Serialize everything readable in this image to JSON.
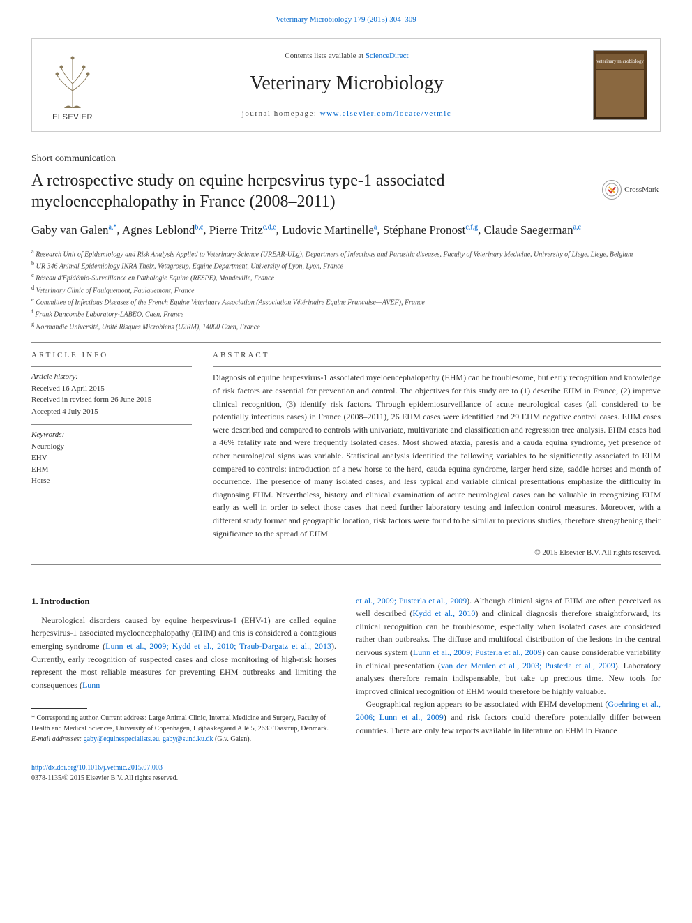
{
  "journal_ref": "Veterinary Microbiology 179 (2015) 304–309",
  "header": {
    "contents_text": "Contents lists available at ",
    "contents_link": "ScienceDirect",
    "journal_name": "Veterinary Microbiology",
    "homepage_label": "journal homepage: ",
    "homepage_url": "www.elsevier.com/locate/vetmic",
    "publisher": "ELSEVIER",
    "cover_text": "veterinary microbiology"
  },
  "crossmark": "CrossMark",
  "article": {
    "type": "Short communication",
    "title": "A retrospective study on equine herpesvirus type-1 associated myeloencephalopathy in France (2008–2011)",
    "authors_html": "Gaby van Galen<sup>a,*</sup>, Agnes Leblond<sup>b,c</sup>, Pierre Tritz<sup>c,d,e</sup>, Ludovic Martinelle<sup>a</sup>, Stéphane Pronost<sup>c,f,g</sup>, Claude Saegerman<sup>a,c</sup>"
  },
  "affiliations": [
    {
      "sup": "a",
      "text": "Research Unit of Epidemiology and Risk Analysis Applied to Veterinary Science (UREAR-ULg), Department of Infectious and Parasitic diseases, Faculty of Veterinary Medicine, University of Liege, Liege, Belgium"
    },
    {
      "sup": "b",
      "text": "UR 346 Animal Epidemiology INRA Theix, Vetagrosup, Equine Department, University of Lyon, Lyon, France"
    },
    {
      "sup": "c",
      "text": "Réseau d'Epidémio-Surveillance en Pathologie Equine (RESPE), Mondeville, France"
    },
    {
      "sup": "d",
      "text": "Veterinary Clinic of Faulquemont, Faulquemont, France"
    },
    {
      "sup": "e",
      "text": "Committee of Infectious Diseases of the French Equine Veterinary Association (Association Vétérinaire Equine Francaise—AVEF), France"
    },
    {
      "sup": "f",
      "text": "Frank Duncombe Laboratory-LABEO, Caen, France"
    },
    {
      "sup": "g",
      "text": "Normandie Université, Unité Risques Microbiens (U2RM), 14000 Caen, France"
    }
  ],
  "info": {
    "head": "ARTICLE INFO",
    "history_label": "Article history:",
    "history": [
      "Received 16 April 2015",
      "Received in revised form 26 June 2015",
      "Accepted 4 July 2015"
    ],
    "keywords_label": "Keywords:",
    "keywords": [
      "Neurology",
      "EHV",
      "EHM",
      "Horse"
    ]
  },
  "abstract": {
    "head": "ABSTRACT",
    "text": "Diagnosis of equine herpesvirus-1 associated myeloencephalopathy (EHM) can be troublesome, but early recognition and knowledge of risk factors are essential for prevention and control. The objectives for this study are to (1) describe EHM in France, (2) improve clinical recognition, (3) identify risk factors. Through epidemiosurveillance of acute neurological cases (all considered to be potentially infectious cases) in France (2008–2011), 26 EHM cases were identified and 29 EHM negative control cases. EHM cases were described and compared to controls with univariate, multivariate and classification and regression tree analysis. EHM cases had a 46% fatality rate and were frequently isolated cases. Most showed ataxia, paresis and a cauda equina syndrome, yet presence of other neurological signs was variable. Statistical analysis identified the following variables to be significantly associated to EHM compared to controls: introduction of a new horse to the herd, cauda equina syndrome, larger herd size, saddle horses and month of occurrence. The presence of many isolated cases, and less typical and variable clinical presentations emphasize the difficulty in diagnosing EHM. Nevertheless, history and clinical examination of acute neurological cases can be valuable in recognizing EHM early as well in order to select those cases that need further laboratory testing and infection control measures. Moreover, with a different study format and geographic location, risk factors were found to be similar to previous studies, therefore strengthening their significance to the spread of EHM.",
    "copyright": "© 2015 Elsevier B.V. All rights reserved."
  },
  "body": {
    "heading": "1. Introduction",
    "col1_p1_pre": "Neurological disorders caused by equine herpesvirus-1 (EHV-1) are called equine herpesvirus-1 associated myeloencephalopathy (EHM) and this is considered a contagious emerging syndrome (",
    "col1_p1_cite": "Lunn et al., 2009; Kydd et al., 2010; Traub-Dargatz et al., 2013",
    "col1_p1_post": "). Currently, early recognition of suspected cases and close monitoring of high-risk horses represent the most reliable measures for preventing EHM outbreaks and limiting the consequences (",
    "col1_p1_cite2": "Lunn",
    "col2_p1_cite1": "et al., 2009; Pusterla et al., 2009",
    "col2_p1_a": "). Although clinical signs of EHM are often perceived as well described (",
    "col2_p1_cite2": "Kydd et al., 2010",
    "col2_p1_b": ") and clinical diagnosis therefore straightforward, its clinical recognition can be troublesome, especially when isolated cases are considered rather than outbreaks. The diffuse and multifocal distribution of the lesions in the central nervous system (",
    "col2_p1_cite3": "Lunn et al., 2009; Pusterla et al., 2009",
    "col2_p1_c": ") can cause considerable variability in clinical presentation (",
    "col2_p1_cite4": "van der Meulen et al., 2003; Pusterla et al., 2009",
    "col2_p1_d": "). Laboratory analyses therefore remain indispensable, but take up precious time. New tools for improved clinical recognition of EHM would therefore be highly valuable.",
    "col2_p2_a": "Geographical region appears to be associated with EHM development (",
    "col2_p2_cite": "Goehring et al., 2006; Lunn et al., 2009",
    "col2_p2_b": ") and risk factors could therefore potentially differ between countries. There are only few reports available in literature on EHM in France"
  },
  "footnote": {
    "corr": "* Corresponding author. Current address: Large Animal Clinic, Internal Medicine and Surgery, Faculty of Health and Medical Sciences, University of Copenhagen, Højbakkegaard Allé 5, 2630 Taastrup, Denmark.",
    "email_label": "E-mail addresses: ",
    "email1": "gaby@equinespecialists.eu",
    "email_sep": ", ",
    "email2": "gaby@sund.ku.dk",
    "email_tail": " (G.v. Galen)."
  },
  "footer": {
    "doi": "http://dx.doi.org/10.1016/j.vetmic.2015.07.003",
    "issn_line": "0378-1135/© 2015 Elsevier B.V. All rights reserved."
  },
  "colors": {
    "link": "#0066cc",
    "text": "#333333",
    "rule": "#888888",
    "cover_bg": "#5a3d1e"
  },
  "typography": {
    "journal_title_pt": 28,
    "article_title_pt": 24,
    "authors_pt": 17,
    "body_pt": 12,
    "small_pt": 11,
    "fine_pt": 10
  }
}
